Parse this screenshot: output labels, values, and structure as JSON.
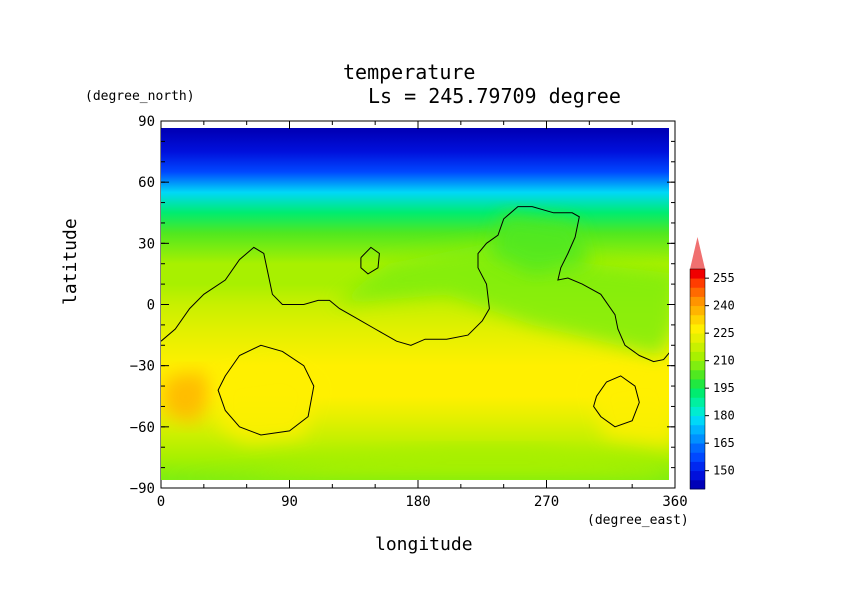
{
  "chart_data": {
    "type": "heatmap",
    "title": "temperature",
    "subtitle": "Ls = 245.79709 degree",
    "xlabel": "longitude",
    "ylabel": "latitude",
    "x_unit": "(degree_east)",
    "y_unit": "(degree_north)",
    "xlim": [
      0,
      360
    ],
    "ylim": [
      -90,
      90
    ],
    "x_ticks": [
      "0",
      "90",
      "180",
      "270",
      "360"
    ],
    "y_ticks": [
      "90",
      "60",
      "30",
      "0",
      "−30",
      "−60",
      "−90"
    ],
    "colorbar": {
      "ticks": [
        "255",
        "240",
        "225",
        "210",
        "195",
        "180",
        "165",
        "150"
      ],
      "levels": [
        145,
        150,
        155,
        160,
        165,
        170,
        175,
        180,
        185,
        190,
        195,
        200,
        205,
        210,
        215,
        220,
        225,
        230,
        235,
        240,
        245,
        250,
        255,
        260
      ],
      "colors": [
        "#0000b8",
        "#0010dc",
        "#0028f0",
        "#0048ff",
        "#0068ff",
        "#0090ff",
        "#00b4ff",
        "#00d8f8",
        "#00ecd0",
        "#00f0a0",
        "#00ec70",
        "#20e840",
        "#50e820",
        "#80ee10",
        "#a8f000",
        "#c8f000",
        "#e6f000",
        "#fff000",
        "#ffd400",
        "#ffb400",
        "#ff9400",
        "#ff6a00",
        "#ff3c00",
        "#f00000"
      ],
      "over_color": "#f07070",
      "extend": "max"
    },
    "latitude_profile": [
      {
        "lat": 85,
        "value": 147
      },
      {
        "lat": 75,
        "value": 150
      },
      {
        "lat": 65,
        "value": 162
      },
      {
        "lat": 55,
        "value": 180
      },
      {
        "lat": 45,
        "value": 195
      },
      {
        "lat": 35,
        "value": 205
      },
      {
        "lat": 20,
        "value": 215
      },
      {
        "lat": 10,
        "value": 219
      },
      {
        "lat": 0,
        "value": 221
      },
      {
        "lat": -15,
        "value": 225
      },
      {
        "lat": -30,
        "value": 230
      },
      {
        "lat": -45,
        "value": 233
      },
      {
        "lat": -55,
        "value": 229
      },
      {
        "lat": -65,
        "value": 224
      },
      {
        "lat": -75,
        "value": 218
      },
      {
        "lat": -85,
        "value": 212
      }
    ],
    "regions": [
      {
        "name": "",
        "value": 240,
        "polygon": [
          [
            5,
            -35
          ],
          [
            30,
            -33
          ],
          [
            35,
            -45
          ],
          [
            25,
            -58
          ],
          [
            5,
            -55
          ],
          [
            0,
            -45
          ]
        ]
      },
      {
        "name": "",
        "value": 232,
        "polygon": [
          [
            40,
            -35
          ],
          [
            90,
            -30
          ],
          [
            110,
            -40
          ],
          [
            100,
            -65
          ],
          [
            60,
            -68
          ],
          [
            40,
            -60
          ]
        ]
      },
      {
        "name": "",
        "value": 232,
        "polygon": [
          [
            300,
            -38
          ],
          [
            345,
            -32
          ],
          [
            360,
            -40
          ],
          [
            360,
            -70
          ],
          [
            310,
            -65
          ]
        ]
      },
      {
        "name": "",
        "value": 212,
        "polygon": [
          [
            120,
            0
          ],
          [
            200,
            5
          ],
          [
            260,
            -10
          ],
          [
            320,
            -20
          ],
          [
            350,
            -25
          ],
          [
            360,
            -10
          ],
          [
            360,
            15
          ],
          [
            300,
            20
          ],
          [
            230,
            30
          ],
          [
            160,
            20
          ]
        ]
      },
      {
        "name": "",
        "value": 208,
        "polygon": [
          [
            240,
            45
          ],
          [
            290,
            40
          ],
          [
            300,
            20
          ],
          [
            260,
            15
          ],
          [
            230,
            25
          ]
        ]
      },
      {
        "name": "",
        "value": 216,
        "polygon": [
          [
            120,
            -75
          ],
          [
            200,
            -70
          ],
          [
            260,
            -70
          ],
          [
            340,
            -78
          ],
          [
            360,
            -85
          ],
          [
            0,
            -85
          ],
          [
            60,
            -82
          ]
        ]
      }
    ],
    "contours": [
      {
        "name": "",
        "points": [
          [
            0,
            -18
          ],
          [
            10,
            -12
          ],
          [
            20,
            -2
          ],
          [
            30,
            5
          ],
          [
            45,
            12
          ],
          [
            55,
            22
          ],
          [
            65,
            28
          ],
          [
            72,
            25
          ],
          [
            75,
            15
          ],
          [
            78,
            5
          ],
          [
            85,
            0
          ],
          [
            100,
            0
          ],
          [
            110,
            2
          ],
          [
            118,
            2
          ],
          [
            125,
            -2
          ],
          [
            135,
            -6
          ],
          [
            150,
            -12
          ],
          [
            165,
            -18
          ],
          [
            175,
            -20
          ],
          [
            185,
            -17
          ],
          [
            200,
            -17
          ],
          [
            215,
            -15
          ],
          [
            225,
            -8
          ],
          [
            230,
            -2
          ],
          [
            228,
            10
          ],
          [
            222,
            18
          ],
          [
            222,
            25
          ],
          [
            228,
            30
          ],
          [
            236,
            34
          ],
          [
            240,
            42
          ],
          [
            250,
            48
          ],
          [
            260,
            48
          ],
          [
            275,
            45
          ],
          [
            288,
            45
          ],
          [
            293,
            43
          ],
          [
            290,
            33
          ],
          [
            285,
            25
          ],
          [
            280,
            18
          ],
          [
            278,
            12
          ],
          [
            285,
            13
          ],
          [
            295,
            10
          ],
          [
            308,
            5
          ],
          [
            318,
            -5
          ],
          [
            320,
            -12
          ],
          [
            325,
            -20
          ],
          [
            335,
            -25
          ],
          [
            345,
            -28
          ],
          [
            352,
            -27
          ],
          [
            358,
            -22
          ],
          [
            360,
            -20
          ]
        ]
      },
      {
        "name": "",
        "points": [
          [
            140,
            23
          ],
          [
            147,
            28
          ],
          [
            153,
            25
          ],
          [
            152,
            18
          ],
          [
            145,
            15
          ],
          [
            140,
            18
          ],
          [
            140,
            23
          ]
        ]
      },
      {
        "name": "",
        "points": [
          [
            45,
            -35
          ],
          [
            55,
            -25
          ],
          [
            70,
            -20
          ],
          [
            85,
            -23
          ],
          [
            100,
            -30
          ],
          [
            107,
            -40
          ],
          [
            103,
            -55
          ],
          [
            90,
            -62
          ],
          [
            70,
            -64
          ],
          [
            55,
            -60
          ],
          [
            45,
            -52
          ],
          [
            40,
            -42
          ],
          [
            45,
            -35
          ]
        ]
      },
      {
        "name": "",
        "points": [
          [
            305,
            -45
          ],
          [
            312,
            -38
          ],
          [
            322,
            -35
          ],
          [
            332,
            -40
          ],
          [
            335,
            -48
          ],
          [
            330,
            -57
          ],
          [
            318,
            -60
          ],
          [
            308,
            -55
          ],
          [
            303,
            -50
          ],
          [
            305,
            -45
          ]
        ]
      }
    ]
  }
}
